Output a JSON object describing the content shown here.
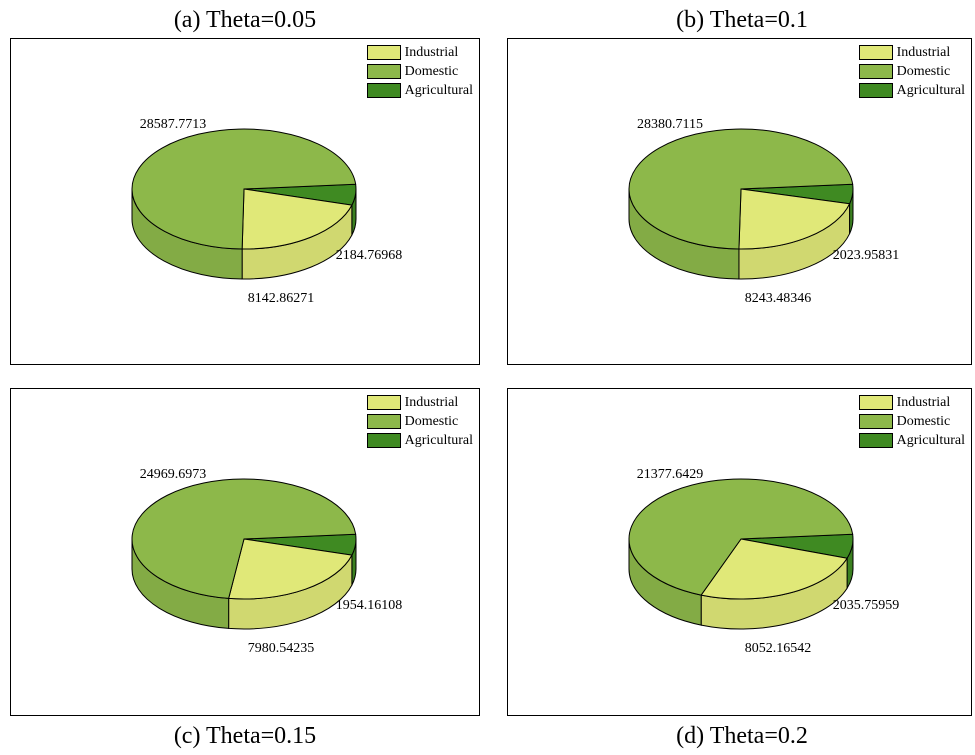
{
  "colors": {
    "Industrial": "#e0e878",
    "Domestic": "#8db84a",
    "Agricultural": "#3f8a22",
    "outline": "#000000"
  },
  "chart_data": [
    {
      "type": "pie",
      "title": "(a) Theta=0.05",
      "legend": [
        "Industrial",
        "Domestic",
        "Agricultural"
      ],
      "legend_position": "top-right",
      "slices": [
        {
          "name": "Industrial",
          "value": 8142.86271,
          "label": "8142.86271"
        },
        {
          "name": "Domestic",
          "value": 28587.7713,
          "label": "28587.7713"
        },
        {
          "name": "Agricultural",
          "value": 2184.76968,
          "label": "2184.76968"
        }
      ]
    },
    {
      "type": "pie",
      "title": "(b) Theta=0.1",
      "legend": [
        "Industrial",
        "Domestic",
        "Agricultural"
      ],
      "legend_position": "top-right",
      "slices": [
        {
          "name": "Industrial",
          "value": 8243.48346,
          "label": "8243.48346"
        },
        {
          "name": "Domestic",
          "value": 28380.7115,
          "label": "28380.7115"
        },
        {
          "name": "Agricultural",
          "value": 2023.95831,
          "label": "2023.95831"
        }
      ]
    },
    {
      "type": "pie",
      "title": "(c) Theta=0.15",
      "legend": [
        "Industrial",
        "Domestic",
        "Agricultural"
      ],
      "legend_position": "top-right",
      "slices": [
        {
          "name": "Industrial",
          "value": 7980.54235,
          "label": "7980.54235"
        },
        {
          "name": "Domestic",
          "value": 24969.6973,
          "label": "24969.6973"
        },
        {
          "name": "Agricultural",
          "value": 1954.16108,
          "label": "1954.16108"
        }
      ]
    },
    {
      "type": "pie",
      "title": "(d) Theta=0.2",
      "legend": [
        "Industrial",
        "Domestic",
        "Agricultural"
      ],
      "legend_position": "top-right",
      "slices": [
        {
          "name": "Industrial",
          "value": 8052.16542,
          "label": "8052.16542"
        },
        {
          "name": "Domestic",
          "value": 21377.6429,
          "label": "21377.6429"
        },
        {
          "name": "Agricultural",
          "value": 2035.75959,
          "label": "2035.75959"
        }
      ]
    }
  ]
}
